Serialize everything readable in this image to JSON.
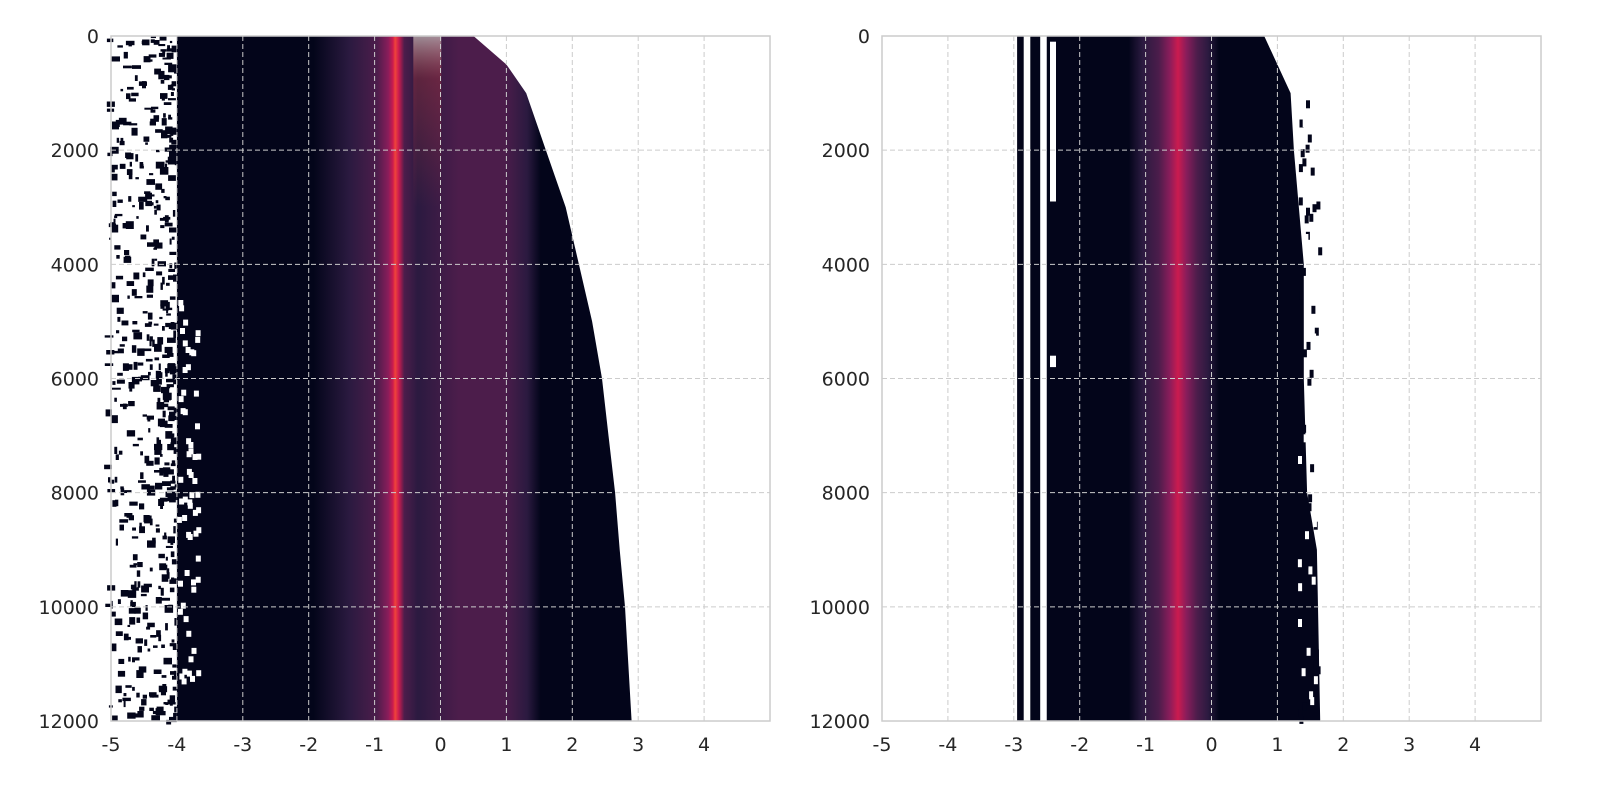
{
  "chart_data": [
    {
      "type": "heatmap",
      "title": "",
      "xlabel": "",
      "ylabel": "",
      "x_ticks": [
        -5,
        -4,
        -3,
        -2,
        -1,
        0,
        1,
        2,
        3,
        4
      ],
      "y_ticks": [
        0,
        2000,
        4000,
        6000,
        8000,
        10000,
        12000
      ],
      "xlim": [
        -5,
        5
      ],
      "ylim": [
        12000,
        0
      ],
      "y_inverted": true,
      "grid": true,
      "colormap": "rocket",
      "colors": [
        "#03051a",
        "#2b1a40",
        "#4c1d4b",
        "#8a1d5b",
        "#cb1b4f",
        "#f0443a",
        "#f6a47c",
        "#faebdd"
      ],
      "peak_x": -0.2,
      "left_edge_x": -4.0,
      "right_edge": [
        {
          "y": 0,
          "x": 0.5
        },
        {
          "y": 500,
          "x": 1.0
        },
        {
          "y": 1000,
          "x": 1.3
        },
        {
          "y": 2000,
          "x": 1.6
        },
        {
          "y": 3000,
          "x": 1.9
        },
        {
          "y": 4000,
          "x": 2.1
        },
        {
          "y": 5000,
          "x": 2.3
        },
        {
          "y": 6000,
          "x": 2.45
        },
        {
          "y": 7000,
          "x": 2.55
        },
        {
          "y": 8000,
          "x": 2.65
        },
        {
          "y": 9000,
          "x": 2.72
        },
        {
          "y": 10000,
          "x": 2.8
        },
        {
          "y": 11000,
          "x": 2.85
        },
        {
          "y": 12000,
          "x": 2.9
        }
      ]
    },
    {
      "type": "heatmap",
      "title": "",
      "xlabel": "",
      "ylabel": "",
      "x_ticks": [
        -5,
        -4,
        -3,
        -2,
        -1,
        0,
        1,
        2,
        3,
        4
      ],
      "y_ticks": [
        0,
        2000,
        4000,
        6000,
        8000,
        10000,
        12000
      ],
      "xlim": [
        -5,
        5
      ],
      "ylim": [
        12000,
        0
      ],
      "y_inverted": true,
      "grid": true,
      "colormap": "rocket",
      "colors": [
        "#03051a",
        "#2b1a40",
        "#4c1d4b",
        "#8a1d5b",
        "#cb1b4f",
        "#f0443a"
      ],
      "peak_x": -0.2,
      "left_edge_x": -2.5,
      "isolated_columns_x": [
        [
          -2.95,
          -2.85
        ],
        [
          -2.75,
          -2.6
        ]
      ],
      "right_edge": [
        {
          "y": 0,
          "x": 0.8
        },
        {
          "y": 1000,
          "x": 1.2
        },
        {
          "y": 2000,
          "x": 1.25
        },
        {
          "y": 4000,
          "x": 1.4
        },
        {
          "y": 6000,
          "x": 1.4
        },
        {
          "y": 8000,
          "x": 1.45
        },
        {
          "y": 9000,
          "x": 1.6
        },
        {
          "y": 12000,
          "x": 1.65
        }
      ]
    }
  ]
}
